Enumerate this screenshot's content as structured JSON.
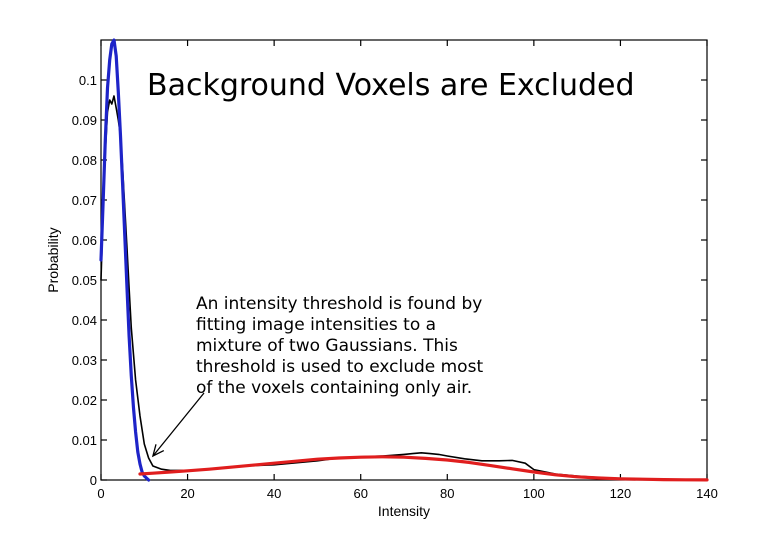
{
  "chart_data": {
    "type": "line",
    "title": "Background Voxels are Excluded",
    "xlabel": "Intensity",
    "ylabel": "Probability",
    "xlim": [
      0,
      140
    ],
    "ylim": [
      0,
      0.11
    ],
    "xticks": [
      "0",
      "20",
      "40",
      "60",
      "80",
      "100",
      "120",
      "140"
    ],
    "yticks": [
      "0",
      "0.01",
      "0.02",
      "0.03",
      "0.04",
      "0.05",
      "0.06",
      "0.07",
      "0.08",
      "0.09",
      "0.1"
    ],
    "grid": false,
    "annotation": {
      "lines": [
        "An intensity threshold is found by",
        "fitting image intensities to a",
        "mixture of two Gaussians.  This",
        "threshold is used to exclude most",
        "of the voxels containing only air."
      ],
      "arrow_target": [
        12,
        0.003
      ]
    },
    "series": [
      {
        "color": "#000000",
        "x": [
          0,
          0.5,
          1,
          1.5,
          2,
          2.5,
          3,
          3.5,
          4,
          4.5,
          5,
          5.5,
          6,
          6.5,
          7,
          8,
          9,
          10,
          11,
          12,
          14,
          16,
          20,
          25,
          30,
          35,
          40,
          45,
          50,
          55,
          60,
          65,
          70,
          72,
          74,
          76,
          78,
          80,
          84,
          88,
          92,
          95,
          98,
          100,
          105,
          110,
          115,
          120,
          125,
          130,
          135,
          140
        ],
        "y": [
          0.05,
          0.068,
          0.082,
          0.092,
          0.095,
          0.094,
          0.096,
          0.093,
          0.09,
          0.086,
          0.078,
          0.068,
          0.058,
          0.048,
          0.038,
          0.025,
          0.016,
          0.009,
          0.0055,
          0.0035,
          0.0027,
          0.0024,
          0.0024,
          0.0027,
          0.0032,
          0.0036,
          0.0038,
          0.0043,
          0.0048,
          0.0055,
          0.0058,
          0.006,
          0.0064,
          0.0066,
          0.0068,
          0.0066,
          0.0064,
          0.006,
          0.0053,
          0.0048,
          0.0048,
          0.0049,
          0.0042,
          0.0026,
          0.0015,
          0.001,
          0.0006,
          0.0004,
          0.0003,
          0.0002,
          0.0001,
          0.0001
        ]
      },
      {
        "color": "#1e24c8",
        "x": [
          0,
          0.5,
          1,
          1.5,
          2,
          2.5,
          3,
          3.5,
          4,
          4.5,
          5,
          5.5,
          6,
          6.5,
          7,
          7.5,
          8,
          8.5,
          9,
          9.5,
          10,
          11
        ],
        "y": [
          0.055,
          0.07,
          0.085,
          0.098,
          0.105,
          0.109,
          0.11,
          0.106,
          0.097,
          0.086,
          0.074,
          0.061,
          0.048,
          0.036,
          0.026,
          0.018,
          0.012,
          0.007,
          0.004,
          0.002,
          0.001,
          0
        ]
      },
      {
        "color": "#e01e1e",
        "x": [
          9,
          12,
          16,
          20,
          25,
          30,
          35,
          40,
          45,
          50,
          55,
          60,
          65,
          70,
          75,
          80,
          85,
          90,
          95,
          100,
          105,
          110,
          115,
          120,
          125,
          130,
          135,
          140
        ],
        "y": [
          0.0015,
          0.0017,
          0.002,
          0.0023,
          0.0027,
          0.0032,
          0.0037,
          0.0042,
          0.0047,
          0.0052,
          0.0055,
          0.0057,
          0.0058,
          0.0057,
          0.0054,
          0.005,
          0.0044,
          0.0036,
          0.0028,
          0.002,
          0.0013,
          0.0008,
          0.0005,
          0.0003,
          0.0002,
          0.0001,
          5e-05,
          3e-05
        ]
      }
    ]
  }
}
